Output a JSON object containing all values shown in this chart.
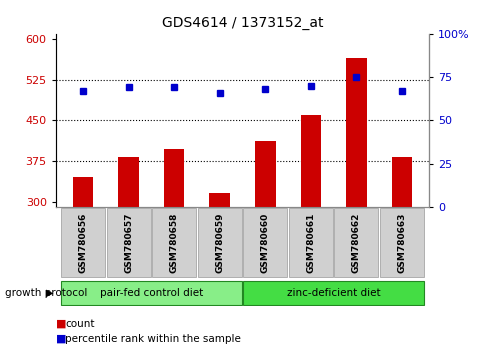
{
  "title": "GDS4614 / 1373152_at",
  "samples": [
    "GSM780656",
    "GSM780657",
    "GSM780658",
    "GSM780659",
    "GSM780660",
    "GSM780661",
    "GSM780662",
    "GSM780663"
  ],
  "counts": [
    345,
    382,
    398,
    316,
    412,
    460,
    565,
    382
  ],
  "percentiles": [
    67,
    69,
    69,
    66,
    68,
    70,
    75,
    67
  ],
  "ylim_left": [
    290,
    610
  ],
  "ylim_right": [
    0,
    100
  ],
  "yticks_left": [
    300,
    375,
    450,
    525,
    600
  ],
  "yticks_right": [
    0,
    25,
    50,
    75,
    100
  ],
  "ytick_labels_right": [
    "0",
    "25",
    "50",
    "75",
    "100%"
  ],
  "bar_color": "#cc0000",
  "dot_color": "#0000cc",
  "group1_label": "pair-fed control diet",
  "group2_label": "zinc-deficient diet",
  "group_color_1": "#88ee88",
  "group_color_2": "#44dd44",
  "protocol_label": "growth protocol",
  "legend_count": "count",
  "legend_percentile": "percentile rank within the sample",
  "bg_color": "#ffffff",
  "tick_label_color_left": "#cc0000",
  "tick_label_color_right": "#0000cc",
  "dotted_lines": [
    375,
    450,
    525
  ]
}
